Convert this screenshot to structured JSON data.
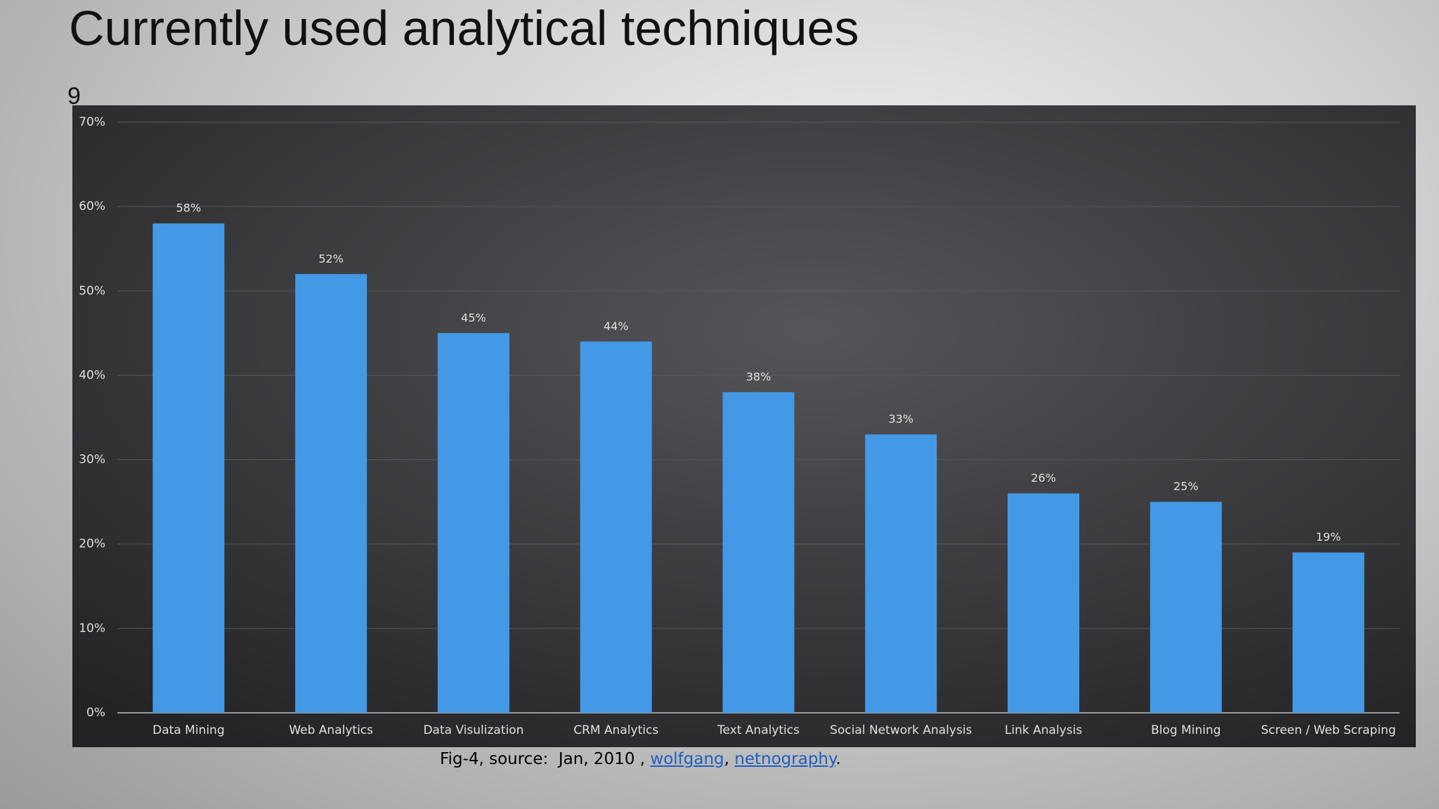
{
  "title": "Currently used analytical techniques",
  "slide_number": "9",
  "chart_data": {
    "type": "bar",
    "categories": [
      "Data Mining",
      "Web Analytics",
      "Data Visulization",
      "CRM Analytics",
      "Text Analytics",
      "Social Network Analysis",
      "Link Analysis",
      "Blog Mining",
      "Screen / Web Scraping"
    ],
    "values": [
      58,
      52,
      45,
      44,
      38,
      33,
      26,
      25,
      19
    ],
    "value_labels": [
      "58%",
      "52%",
      "45%",
      "44%",
      "38%",
      "33%",
      "26%",
      "25%",
      "19%"
    ],
    "color": "#4499e6",
    "ylim": [
      0,
      70
    ],
    "yticks": [
      {
        "value": 0,
        "label": "0%"
      },
      {
        "value": 10,
        "label": "10%"
      },
      {
        "value": 20,
        "label": "20%"
      },
      {
        "value": 30,
        "label": "30%"
      },
      {
        "value": 40,
        "label": "40%"
      },
      {
        "value": 50,
        "label": "50%"
      },
      {
        "value": 60,
        "label": "60%"
      },
      {
        "value": 70,
        "label": "70%"
      }
    ],
    "grid": true
  },
  "caption": {
    "source": "Fig-4, source:  Jan, 2010 , ",
    "links": [
      "wolfgang",
      "netnography"
    ],
    "separator": ", ",
    "end": "."
  }
}
